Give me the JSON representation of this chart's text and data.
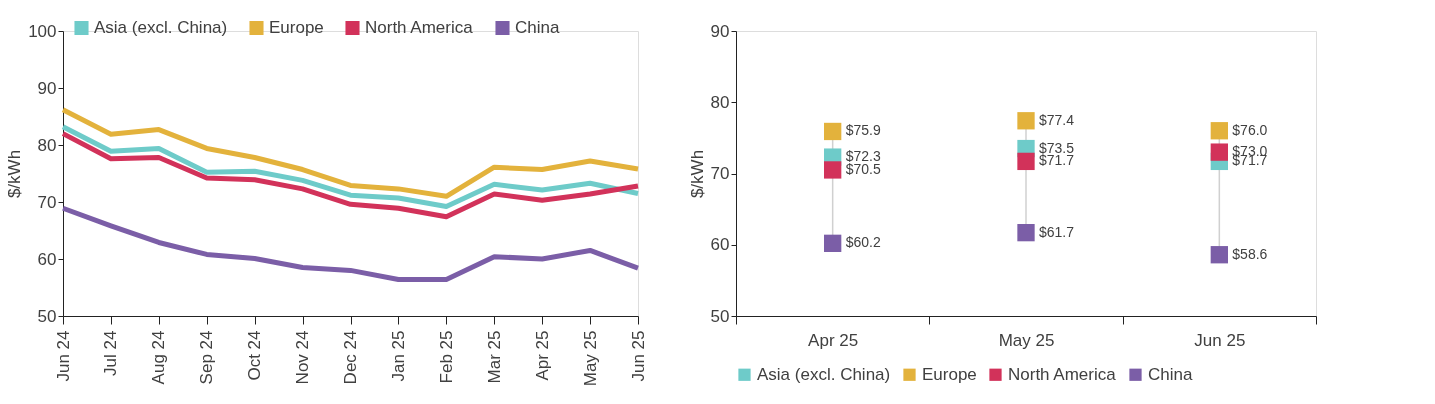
{
  "chart_data": [
    {
      "type": "line",
      "ylabel": "$/kWh",
      "categories": [
        "Jun 24",
        "Jul 24",
        "Aug 24",
        "Sep 24",
        "Oct 24",
        "Nov 24",
        "Dec 24",
        "Jan 25",
        "Feb 25",
        "Mar 25",
        "Apr 25",
        "May 25",
        "Jun 25"
      ],
      "ylim": [
        50,
        100
      ],
      "yticks": [
        50,
        60,
        70,
        80,
        90,
        100
      ],
      "grid": false,
      "legend": "top",
      "line_style": "solid",
      "marker": "none",
      "series": [
        {
          "name": "Asia (excl. China)",
          "color": "#6ecbc9",
          "values": [
            83.2,
            78.9,
            79.4,
            75.2,
            75.4,
            73.8,
            71.2,
            70.7,
            69.2,
            73.1,
            72.1,
            73.3,
            71.5
          ]
        },
        {
          "name": "Europe",
          "color": "#e3b23c",
          "values": [
            86.2,
            81.9,
            82.7,
            79.4,
            77.8,
            75.7,
            72.9,
            72.3,
            71.0,
            76.1,
            75.7,
            77.2,
            75.8
          ]
        },
        {
          "name": "North America",
          "color": "#d2325a",
          "values": [
            82.0,
            77.6,
            77.8,
            74.2,
            73.9,
            72.3,
            69.6,
            68.9,
            67.4,
            71.4,
            70.3,
            71.4,
            72.8
          ]
        },
        {
          "name": "China",
          "color": "#7b5ea7",
          "values": [
            68.9,
            65.8,
            62.9,
            60.8,
            60.1,
            58.5,
            58.0,
            56.4,
            56.4,
            60.4,
            60.0,
            61.5,
            58.4
          ]
        }
      ]
    },
    {
      "type": "scatter",
      "ylabel": "$/kWh",
      "categories": [
        "Apr 25",
        "May 25",
        "Jun 25"
      ],
      "ylim": [
        50,
        90
      ],
      "yticks": [
        50,
        60,
        70,
        80,
        90
      ],
      "grid": false,
      "legend": "bottom",
      "marker": "square",
      "series": [
        {
          "name": "Asia (excl. China)",
          "color": "#6ecbc9",
          "values": [
            72.3,
            73.5,
            71.7
          ],
          "value_labels": [
            "$72.3",
            "$73.5",
            "$71.7"
          ]
        },
        {
          "name": "Europe",
          "color": "#e3b23c",
          "values": [
            75.9,
            77.4,
            76.0
          ],
          "value_labels": [
            "$75.9",
            "$77.4",
            "$76.0"
          ]
        },
        {
          "name": "North America",
          "color": "#d2325a",
          "values": [
            70.5,
            71.7,
            73.0
          ],
          "value_labels": [
            "$70.5",
            "$71.7",
            "$73.0"
          ]
        },
        {
          "name": "China",
          "color": "#7b5ea7",
          "values": [
            60.2,
            61.7,
            58.6
          ],
          "value_labels": [
            "$60.2",
            "$61.7",
            "$58.6"
          ]
        }
      ]
    }
  ]
}
